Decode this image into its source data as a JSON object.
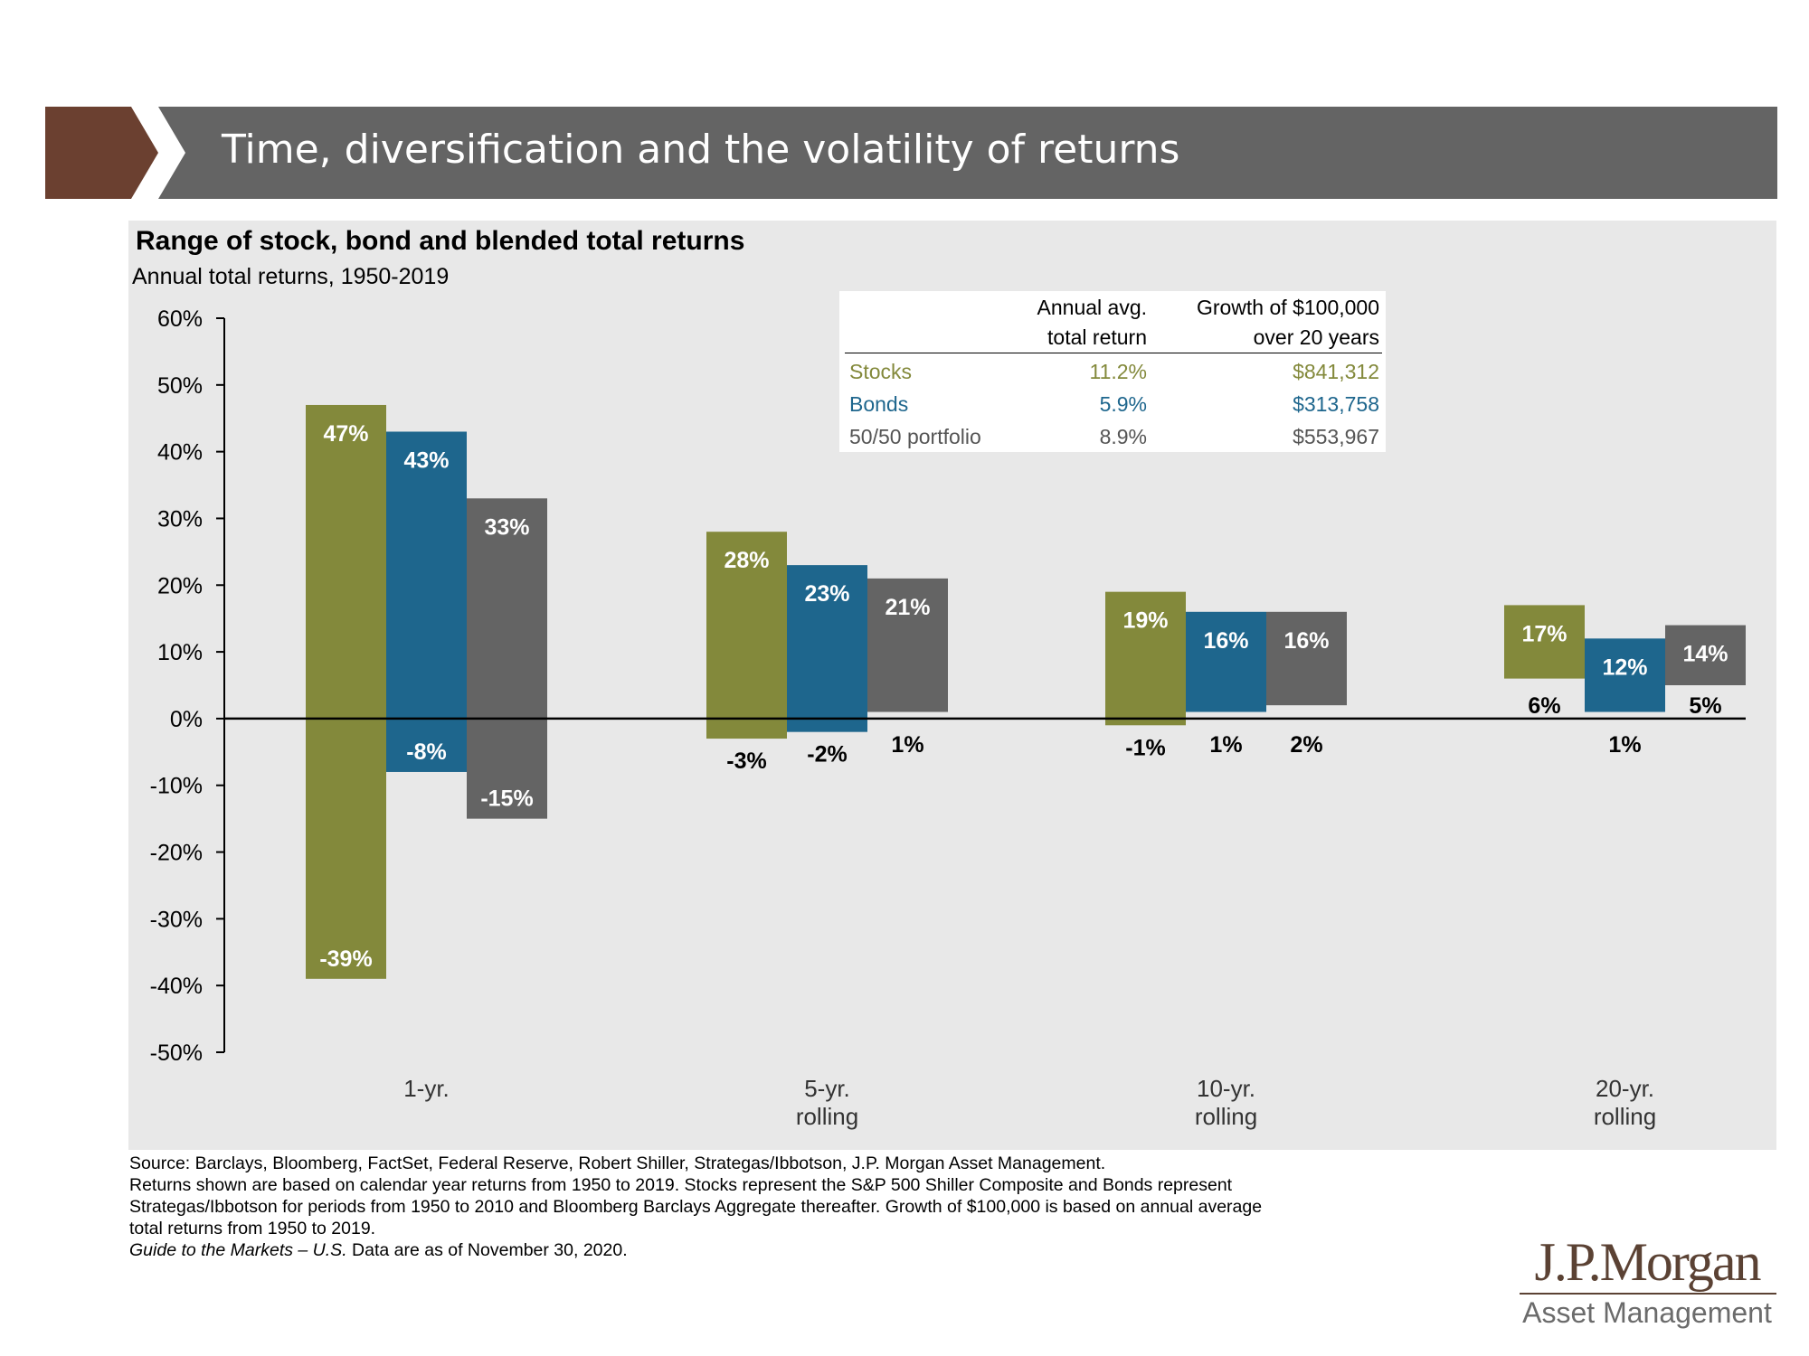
{
  "header": {
    "title": "Time, diversification and the volatility of returns",
    "colors": {
      "chevron": "#6b4030",
      "bar": "#646464"
    }
  },
  "chart_data": {
    "type": "bar",
    "title": "Range of stock, bond and blended total returns",
    "subtitle": "Annual total returns, 1950-2019",
    "categories": [
      [
        "1-yr."
      ],
      [
        "5-yr.",
        "rolling"
      ],
      [
        "10-yr.",
        "rolling"
      ],
      [
        "20-yr.",
        "rolling"
      ]
    ],
    "series": [
      {
        "name": "Stocks",
        "color": "#83893b",
        "max": [
          47,
          28,
          19,
          17
        ],
        "min": [
          -39,
          -3,
          -1,
          6
        ]
      },
      {
        "name": "Bonds",
        "color": "#1e668d",
        "max": [
          43,
          23,
          16,
          12
        ],
        "min": [
          -8,
          -2,
          1,
          1
        ]
      },
      {
        "name": "50/50 portfolio",
        "color": "#646464",
        "max": [
          33,
          21,
          16,
          14
        ],
        "min": [
          -15,
          1,
          2,
          5
        ]
      }
    ],
    "max_labels": [
      [
        "47%",
        "43%",
        "33%"
      ],
      [
        "28%",
        "23%",
        "21%"
      ],
      [
        "19%",
        "16%",
        "16%"
      ],
      [
        "17%",
        "12%",
        "14%"
      ]
    ],
    "min_labels": [
      [
        "-39%",
        "-8%",
        "-15%"
      ],
      [
        "-3%",
        "-2%",
        "1%"
      ],
      [
        "-1%",
        "1%",
        "2%"
      ],
      [
        "6%",
        "1%",
        "5%"
      ]
    ],
    "y_ticks": [
      "60%",
      "50%",
      "40%",
      "30%",
      "20%",
      "10%",
      "0%",
      "-10%",
      "-20%",
      "-30%",
      "-40%",
      "-50%"
    ],
    "ylim": [
      -50,
      60
    ],
    "grid": false,
    "background": "#e8e8e8"
  },
  "summary_table": {
    "headers": {
      "col1_line1": "Annual avg.",
      "col1_line2": "total return",
      "col2_line1": "Growth of $100,000",
      "col2_line2": "over 20 years"
    },
    "rows": [
      {
        "name": "Stocks",
        "avg": "11.2%",
        "growth": "$841,312",
        "color": "#83893b"
      },
      {
        "name": "Bonds",
        "avg": "5.9%",
        "growth": "$313,758",
        "color": "#1e668d"
      },
      {
        "name": "50/50 portfolio",
        "avg": "8.9%",
        "growth": "$553,967",
        "color": "#555555"
      }
    ]
  },
  "footnotes": {
    "line1": "Source: Barclays, Bloomberg, FactSet, Federal Reserve, Robert Shiller, Strategas/Ibbotson, J.P. Morgan Asset Management.",
    "line2": "Returns shown are based on calendar year returns from 1950 to 2019. Stocks represent the S&P 500 Shiller Composite and Bonds represent",
    "line3": "Strategas/Ibbotson for periods from 1950 to 2010 and Bloomberg Barclays Aggregate thereafter. Growth of $100,000 is based on annual average",
    "line4": "total returns from 1950 to 2019.",
    "guide_italic": "Guide to the Markets – U.S.",
    "guide_rest": " Data are as of November 30, 2020."
  },
  "logo": {
    "name": "J.P.Morgan",
    "sub": "Asset Management",
    "color": "#5b4234"
  }
}
